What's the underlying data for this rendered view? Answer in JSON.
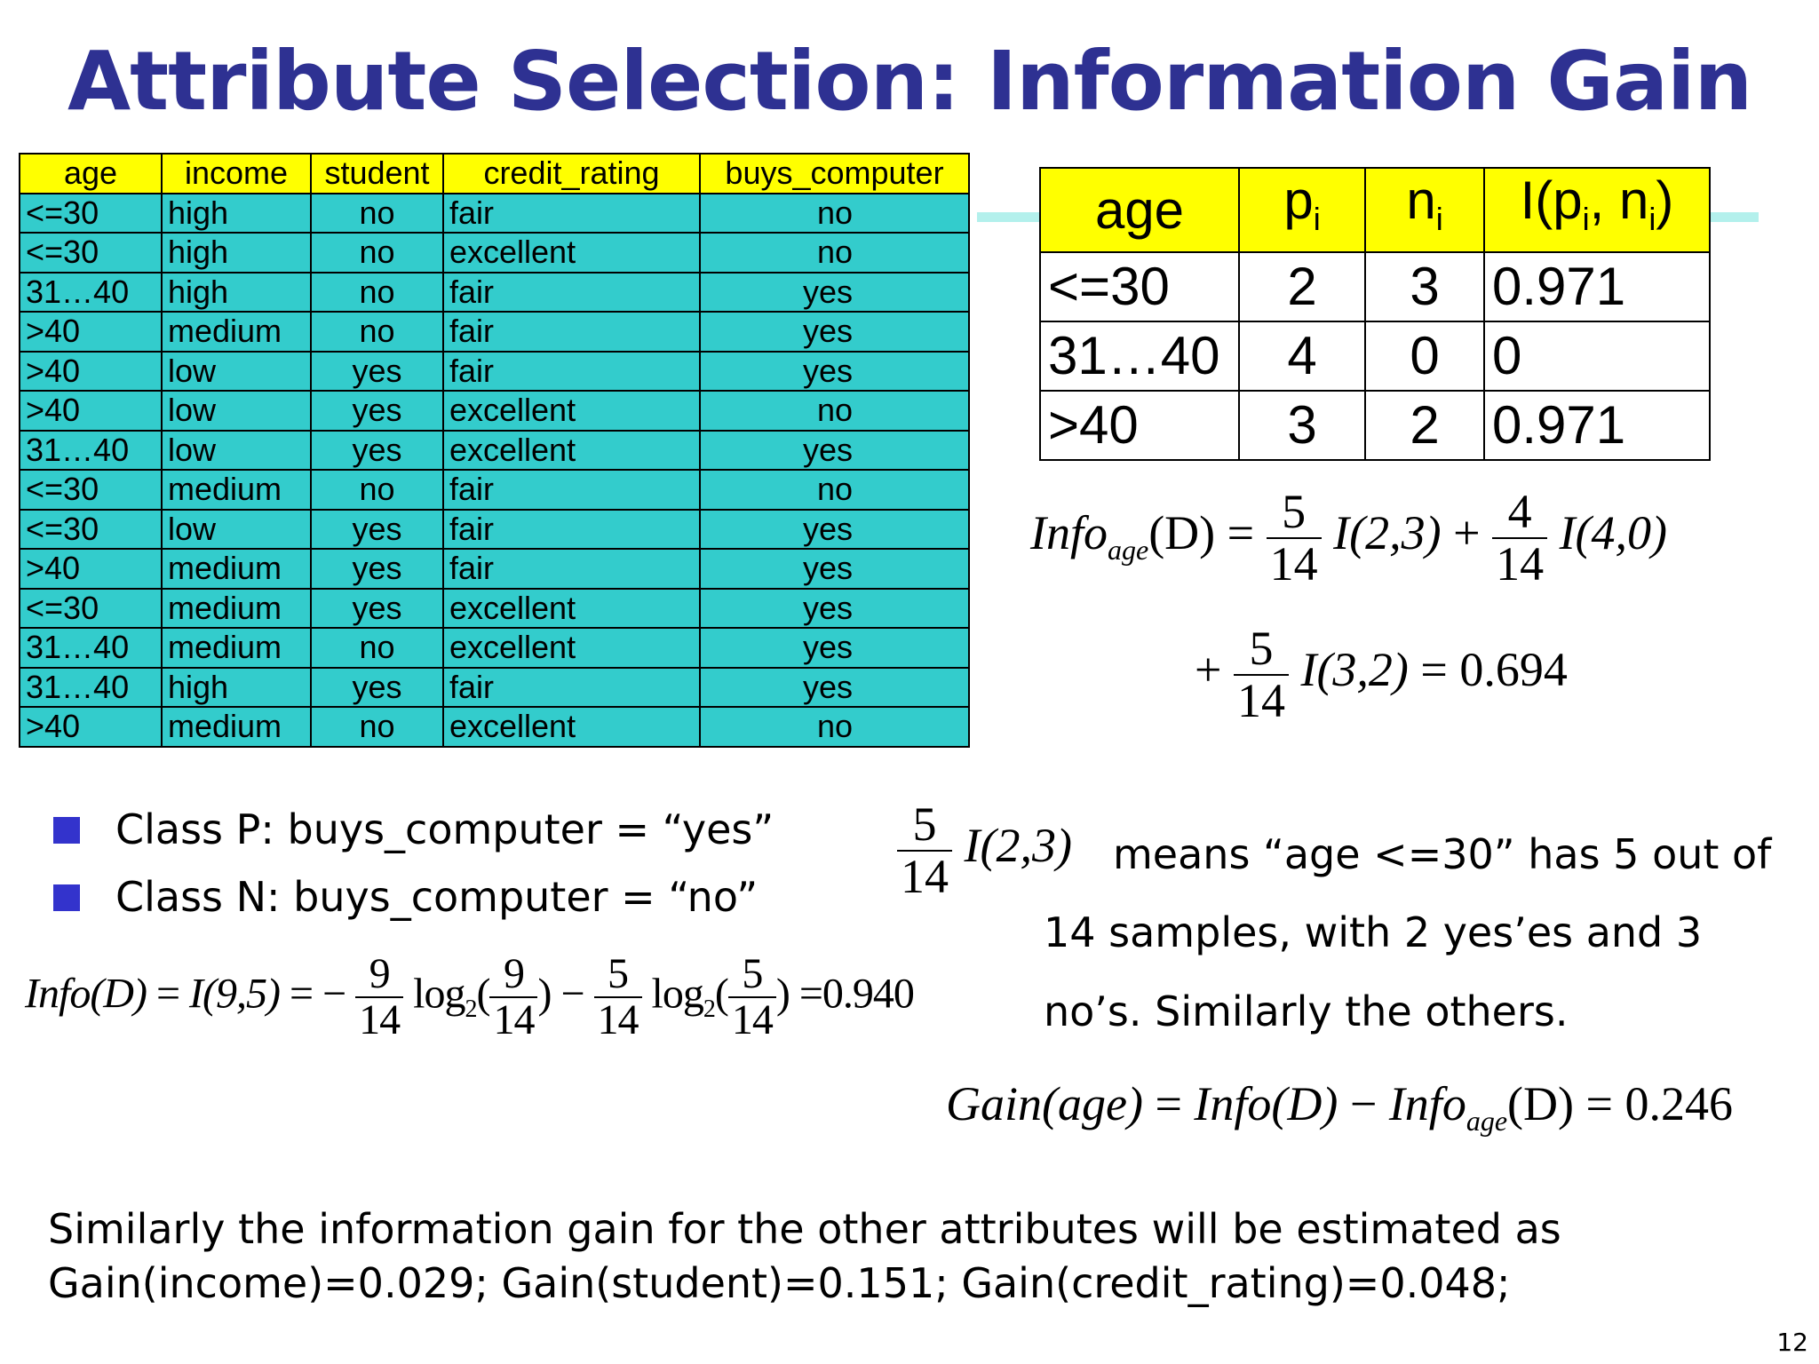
{
  "title": "Attribute Selection: Information Gain",
  "data_table": {
    "headers": [
      "age",
      "income",
      "student",
      "credit_rating",
      "buys_computer"
    ],
    "rows": [
      [
        "<=30",
        "high",
        "no",
        "fair",
        "no"
      ],
      [
        "<=30",
        "high",
        "no",
        "excellent",
        "no"
      ],
      [
        "31…40",
        "high",
        "no",
        "fair",
        "yes"
      ],
      [
        ">40",
        "medium",
        "no",
        "fair",
        "yes"
      ],
      [
        ">40",
        "low",
        "yes",
        "fair",
        "yes"
      ],
      [
        ">40",
        "low",
        "yes",
        "excellent",
        "no"
      ],
      [
        "31…40",
        "low",
        "yes",
        "excellent",
        "yes"
      ],
      [
        "<=30",
        "medium",
        "no",
        "fair",
        "no"
      ],
      [
        "<=30",
        "low",
        "yes",
        "fair",
        "yes"
      ],
      [
        ">40",
        "medium",
        "yes",
        "fair",
        "yes"
      ],
      [
        "<=30",
        "medium",
        "yes",
        "excellent",
        "yes"
      ],
      [
        "31…40",
        "medium",
        "no",
        "excellent",
        "yes"
      ],
      [
        "31…40",
        "high",
        "yes",
        "fair",
        "yes"
      ],
      [
        ">40",
        "medium",
        "no",
        "excellent",
        "no"
      ]
    ]
  },
  "age_table": {
    "headers": {
      "age": "age",
      "p": "p",
      "p_sub": "i",
      "n": "n",
      "n_sub": "i",
      "I_prefix": "I(p",
      "I_mid": ", n",
      "I_suffix": ")"
    },
    "rows": [
      [
        "<=30",
        "2",
        "3",
        "0.971"
      ],
      [
        "31…40",
        "4",
        "0",
        "0"
      ],
      [
        ">40",
        "3",
        "2",
        "0.971"
      ]
    ]
  },
  "info_age": {
    "lhs_name": "Info",
    "lhs_sub": "age",
    "lhs_arg": "(D)",
    "eq": "=",
    "f1_num": "5",
    "f1_den": "14",
    "t1": "I(2,3)",
    "plus": "+",
    "f2_num": "4",
    "f2_den": "14",
    "t2": "I(4,0)",
    "plus2": "+",
    "f3_num": "5",
    "f3_den": "14",
    "t3": "I(3,2)",
    "result": "= 0.694"
  },
  "bullets": [
    "Class P: buys_computer = “yes”",
    "Class N: buys_computer = “no”"
  ],
  "info_d": {
    "lhs": "Info(D)",
    "eq1": "=",
    "mid": "I(9,5)",
    "eq2": "= −",
    "f1_num": "9",
    "f1_den": "14",
    "log1": "log",
    "log1_sub": "2",
    "open1": "(",
    "f2_num": "9",
    "f2_den": "14",
    "close1": ")",
    "minus": "−",
    "f3_num": "5",
    "f3_den": "14",
    "log2": "log",
    "log2_sub": "2",
    "open2": "(",
    "f4_num": "5",
    "f4_den": "14",
    "close2": ")",
    "result": "=0.940"
  },
  "explanation": {
    "f_num": "5",
    "f_den": "14",
    "term": "I(2,3)",
    "line1": "means “age <=30” has 5 out of",
    "line2": "14 samples, with 2 yes’es  and 3",
    "line3": "no’s.  Similarly the others."
  },
  "gain_age": {
    "lhs": "Gain(age)",
    "eq": "=",
    "t1": "Info(D)",
    "minus": "−",
    "t2_name": "Info",
    "t2_sub": "age",
    "t2_arg": "(D)",
    "result": "= 0.246"
  },
  "footer": {
    "line1": "Similarly the information gain for the other attributes will be estimated as",
    "line2": "Gain(income)=0.029; Gain(student)=0.151; Gain(credit_rating)=0.048;"
  },
  "page_number": "12"
}
